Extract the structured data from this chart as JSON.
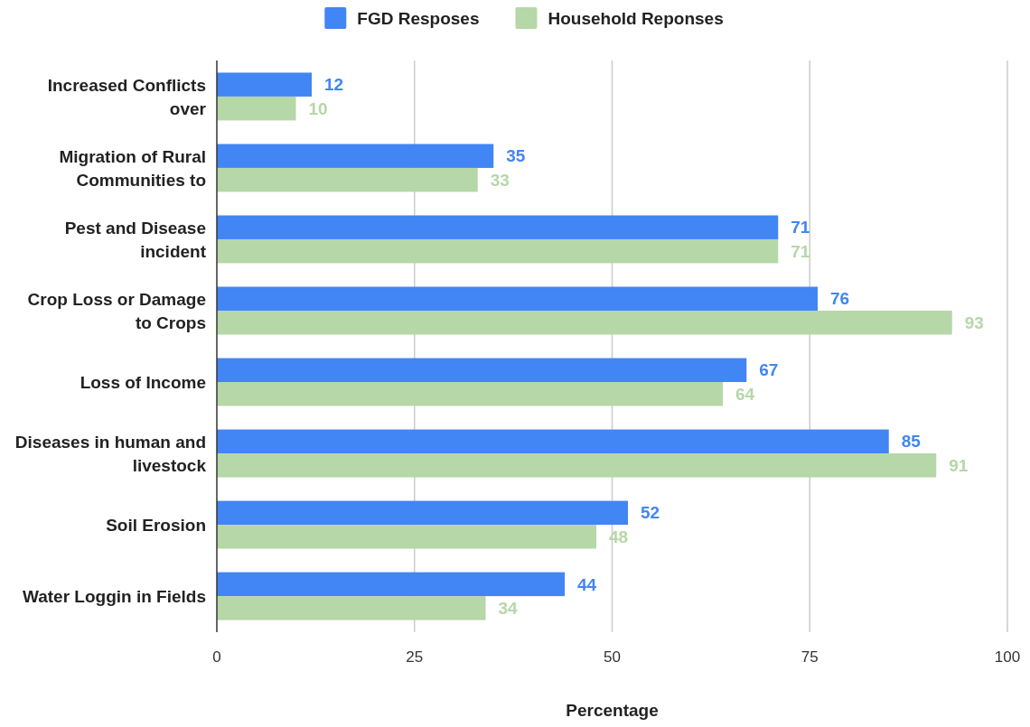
{
  "chart_data": {
    "type": "bar",
    "orientation": "horizontal",
    "xlabel": "Percentage",
    "categories": [
      "Increased Conflicts over",
      "Migration of Rural Communities to",
      "Pest and Disease incident",
      "Crop Loss or Damage to Crops",
      "Loss of Income",
      "Diseases in human and livestock",
      "Soil Erosion",
      "Water Loggin in Fields"
    ],
    "series": [
      {
        "name": "FGD Resposes",
        "color": "#4285f4",
        "values": [
          12,
          35,
          71,
          76,
          67,
          85,
          52,
          44
        ]
      },
      {
        "name": "Household Reponses",
        "color": "#b6d7a8",
        "values": [
          10,
          33,
          71,
          93,
          64,
          91,
          48,
          34
        ]
      }
    ],
    "xlim": [
      0,
      100
    ],
    "xticks": [
      0,
      25,
      50,
      75,
      100
    ],
    "grid": "x",
    "legend": "top",
    "data_labels": true
  }
}
